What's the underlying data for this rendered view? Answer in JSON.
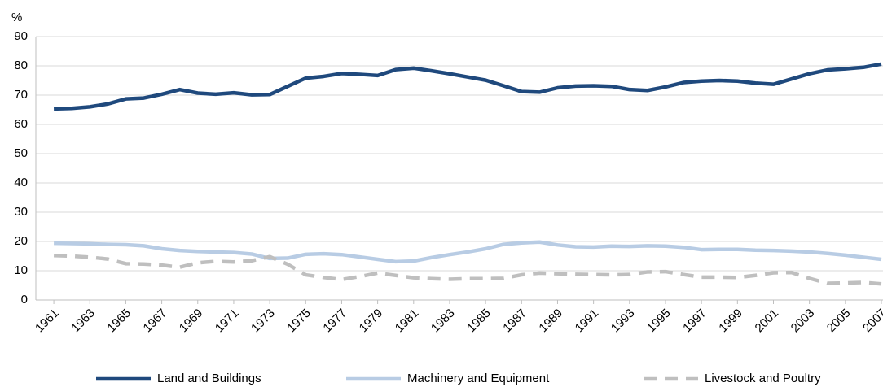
{
  "chart_data": {
    "type": "line",
    "y_label": "%",
    "x": [
      1961,
      1962,
      1963,
      1964,
      1965,
      1966,
      1967,
      1968,
      1969,
      1970,
      1971,
      1972,
      1973,
      1974,
      1975,
      1976,
      1977,
      1978,
      1979,
      1980,
      1981,
      1982,
      1983,
      1984,
      1985,
      1986,
      1987,
      1988,
      1989,
      1990,
      1991,
      1992,
      1993,
      1994,
      1995,
      1996,
      1997,
      1998,
      1999,
      2000,
      2001,
      2002,
      2003,
      2004,
      2005,
      2006,
      2007
    ],
    "series": [
      {
        "name": "Land and Buildings",
        "color": "#1f497d",
        "style": "solid",
        "values": [
          65.3,
          65.5,
          66,
          67,
          68.7,
          69,
          70.3,
          71.9,
          70.7,
          70.3,
          70.8,
          70.1,
          70.2,
          73,
          75.8,
          76.4,
          77.4,
          77.1,
          76.7,
          78.7,
          79.2,
          78.3,
          77.3,
          76.2,
          75.1,
          73.2,
          71.2,
          71,
          72.5,
          73.1,
          73.2,
          73,
          71.9,
          71.6,
          72.8,
          74.3,
          74.8,
          75,
          74.8,
          74.1,
          73.7,
          75.5,
          77.3,
          78.6,
          79,
          79.5,
          80.6
        ]
      },
      {
        "name": "Machinery and Equipment",
        "color": "#b8cce4",
        "style": "solid",
        "values": [
          19.4,
          19.3,
          19.2,
          19,
          18.9,
          18.5,
          17.5,
          16.9,
          16.6,
          16.4,
          16.2,
          15.7,
          14.2,
          14.3,
          15.6,
          15.8,
          15.5,
          14.7,
          13.9,
          13.1,
          13.3,
          14.5,
          15.5,
          16.4,
          17.5,
          19,
          19.5,
          19.8,
          18.8,
          18.2,
          18.1,
          18.4,
          18.3,
          18.5,
          18.4,
          18,
          17.2,
          17.3,
          17.3,
          17,
          16.9,
          16.7,
          16.4,
          15.9,
          15.3,
          14.6,
          13.9
        ]
      },
      {
        "name": "Livestock and Poultry",
        "color": "#bfbfbf",
        "style": "dashed",
        "values": [
          15.2,
          15,
          14.6,
          14,
          12.4,
          12.3,
          11.9,
          11.2,
          12.7,
          13.2,
          13,
          13.4,
          14.8,
          12.2,
          8.6,
          7.7,
          7,
          8,
          9.2,
          8.4,
          7.6,
          7.3,
          7.1,
          7.3,
          7.3,
          7.4,
          8.6,
          9.2,
          9,
          8.8,
          8.7,
          8.6,
          8.7,
          9.6,
          9.7,
          8.7,
          7.8,
          7.8,
          7.7,
          8.4,
          9.3,
          9.4,
          7.4,
          5.7,
          5.8,
          6,
          5.5
        ]
      }
    ],
    "xlim": [
      1960,
      2007
    ],
    "xticks": [
      1961,
      1963,
      1965,
      1967,
      1969,
      1971,
      1973,
      1975,
      1977,
      1979,
      1981,
      1983,
      1985,
      1987,
      1989,
      1991,
      1993,
      1995,
      1997,
      1999,
      2001,
      2003,
      2005,
      2007
    ],
    "ylim": [
      0,
      90
    ],
    "yticks": [
      0,
      10,
      20,
      30,
      40,
      50,
      60,
      70,
      80,
      90
    ],
    "grid": true,
    "legend": "bottom"
  }
}
